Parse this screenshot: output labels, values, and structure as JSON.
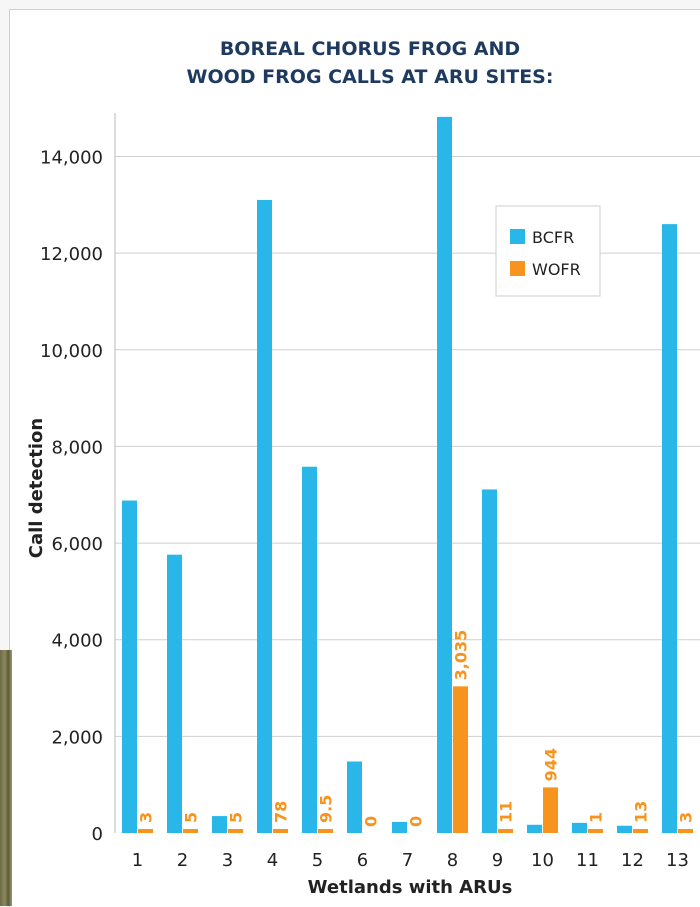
{
  "chart_data": {
    "type": "bar",
    "title_lines": [
      "BOREAL CHORUS FROG AND",
      "WOOD FROG CALLS AT ARU SITES:"
    ],
    "xlabel": "Wetlands with ARUs",
    "ylabel": "Call detection",
    "ylim": [
      0,
      14900
    ],
    "yticks": [
      0,
      2000,
      4000,
      6000,
      8000,
      10000,
      12000,
      14000
    ],
    "ytick_labels": [
      "0",
      "2,000",
      "4,000",
      "6,000",
      "8,000",
      "10,000",
      "12,000",
      "14,000"
    ],
    "grid": true,
    "legend_position": "top-right",
    "categories": [
      "1",
      "2",
      "3",
      "4",
      "5",
      "6",
      "7",
      "8",
      "9",
      "10",
      "11",
      "12",
      "13"
    ],
    "series": [
      {
        "name": "BCFR",
        "color": "#29b6e8",
        "values": [
          6880,
          5760,
          350,
          13100,
          7580,
          1480,
          230,
          14820,
          7110,
          170,
          210,
          150,
          12600
        ]
      },
      {
        "name": "WOFR",
        "color": "#f7941d",
        "values": [
          3,
          5,
          5,
          78,
          9.5,
          0,
          0,
          3035,
          11,
          944,
          1,
          13,
          3
        ],
        "labels": [
          "3",
          "5",
          "5",
          "78",
          "9.5",
          "0",
          "0",
          "3,035",
          "11",
          "944",
          "1",
          "13",
          "3"
        ]
      }
    ]
  }
}
